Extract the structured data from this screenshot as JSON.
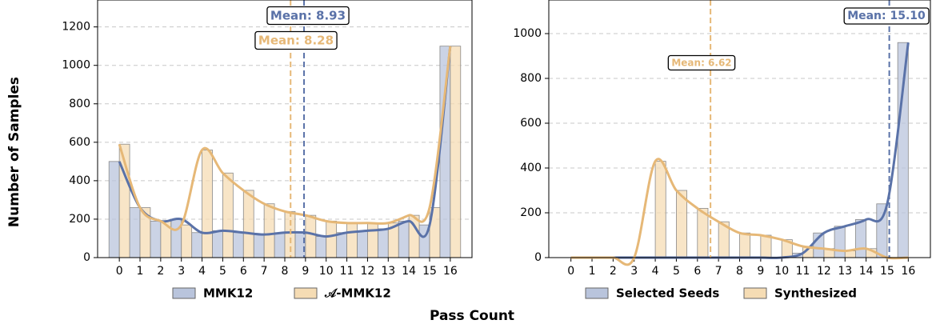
{
  "xlabel": "Pass Count",
  "ylabel": "Number of Samples",
  "chart_data": [
    {
      "type": "bar",
      "categories": [
        0,
        1,
        2,
        3,
        4,
        5,
        6,
        7,
        8,
        9,
        10,
        11,
        12,
        13,
        14,
        15,
        16
      ],
      "series": [
        {
          "name": "MMK12",
          "color": "#5a72a8",
          "values": [
            500,
            260,
            190,
            200,
            130,
            140,
            130,
            120,
            130,
            130,
            110,
            130,
            140,
            150,
            190,
            170,
            1100
          ]
        },
        {
          "name": "𝒜-MMK12",
          "color": "#e6b877",
          "values": [
            590,
            260,
            190,
            170,
            560,
            440,
            350,
            280,
            240,
            220,
            190,
            180,
            180,
            180,
            220,
            260,
            1100
          ]
        }
      ],
      "ylim": [
        0,
        1340
      ],
      "yticks": [
        0,
        200,
        400,
        600,
        800,
        1000,
        1200
      ],
      "grid": true,
      "annotations": [
        {
          "label": "Mean: 8.93",
          "value": 8.93,
          "color": "#5a72a8"
        },
        {
          "label": "Mean: 8.28",
          "value": 8.28,
          "color": "#e6b877"
        }
      ]
    },
    {
      "type": "bar",
      "categories": [
        0,
        1,
        2,
        3,
        4,
        5,
        6,
        7,
        8,
        9,
        10,
        11,
        12,
        13,
        14,
        15,
        16
      ],
      "series": [
        {
          "name": "Selected Seeds",
          "color": "#5a72a8",
          "values": [
            0,
            0,
            0,
            0,
            0,
            0,
            0,
            0,
            0,
            0,
            0,
            20,
            110,
            140,
            170,
            240,
            960
          ]
        },
        {
          "name": "Synthesized",
          "color": "#e6b877",
          "values": [
            0,
            0,
            0,
            0,
            430,
            300,
            220,
            160,
            110,
            100,
            80,
            50,
            40,
            30,
            40,
            0,
            0
          ]
        }
      ],
      "ylim": [
        0,
        1150
      ],
      "yticks": [
        0,
        200,
        400,
        600,
        800,
        1000
      ],
      "grid": true,
      "annotations": [
        {
          "label": "Mean: 6.62",
          "value": 6.62,
          "color": "#e6b877"
        },
        {
          "label": "Mean: 15.10",
          "value": 15.1,
          "color": "#5a72a8"
        }
      ]
    }
  ]
}
